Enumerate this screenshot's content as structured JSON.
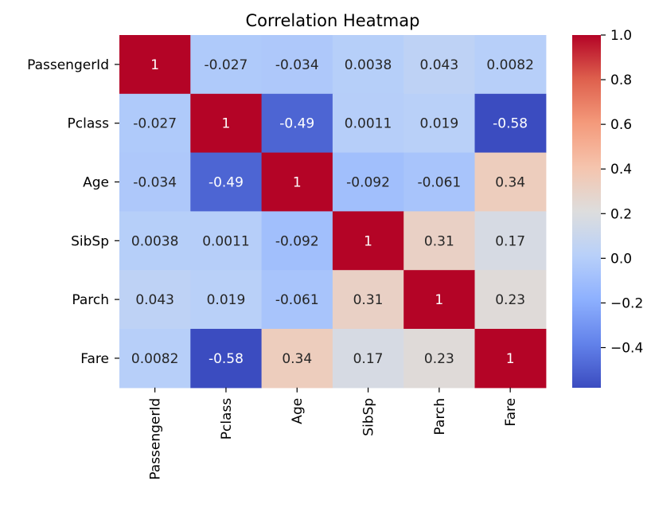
{
  "chart_data": {
    "type": "heatmap",
    "title": "Correlation Heatmap",
    "xlabel": "",
    "ylabel": "",
    "x_categories": [
      "PassengerId",
      "Pclass",
      "Age",
      "SibSp",
      "Parch",
      "Fare"
    ],
    "y_categories": [
      "PassengerId",
      "Pclass",
      "Age",
      "SibSp",
      "Parch",
      "Fare"
    ],
    "values": [
      [
        1,
        -0.027,
        -0.034,
        0.0038,
        0.043,
        0.0082
      ],
      [
        -0.027,
        1,
        -0.49,
        0.0011,
        0.019,
        -0.58
      ],
      [
        -0.034,
        -0.49,
        1,
        -0.092,
        -0.061,
        0.34
      ],
      [
        0.0038,
        0.0011,
        -0.092,
        1,
        0.31,
        0.17
      ],
      [
        0.043,
        0.019,
        -0.061,
        0.31,
        1,
        0.23
      ],
      [
        0.0082,
        -0.58,
        0.34,
        0.17,
        0.23,
        1
      ]
    ],
    "annotations": [
      [
        "1",
        "-0.027",
        "-0.034",
        "0.0038",
        "0.043",
        "0.0082"
      ],
      [
        "-0.027",
        "1",
        "-0.49",
        "0.0011",
        "0.019",
        "-0.58"
      ],
      [
        "-0.034",
        "-0.49",
        "1",
        "-0.092",
        "-0.061",
        "0.34"
      ],
      [
        "0.0038",
        "0.0011",
        "-0.092",
        "1",
        "0.31",
        "0.17"
      ],
      [
        "0.043",
        "0.019",
        "-0.061",
        "0.31",
        "1",
        "0.23"
      ],
      [
        "0.0082",
        "-0.58",
        "0.34",
        "0.17",
        "0.23",
        "1"
      ]
    ],
    "colormap": "coolwarm",
    "color_range": [
      -0.58,
      1.0
    ],
    "colorbar_ticks": [
      1.0,
      0.8,
      0.6,
      0.4,
      0.2,
      0.0,
      -0.2,
      -0.4
    ],
    "colorbar_tick_labels": [
      "1.0",
      "0.8",
      "0.6",
      "0.4",
      "0.2",
      "0.0",
      "−0.2",
      "−0.4"
    ],
    "grid": false,
    "legend": "colorbar-right"
  }
}
